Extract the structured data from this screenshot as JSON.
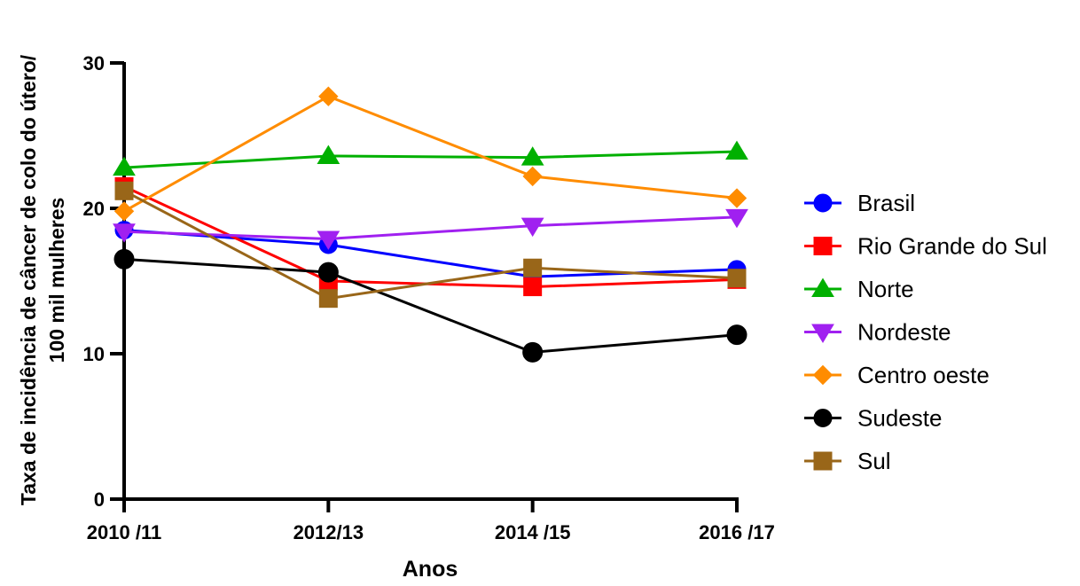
{
  "chart_data": {
    "type": "line",
    "title": "",
    "xlabel": "Anos",
    "ylabel_lines": [
      "Taxa de incidência de câncer de colo do útero/",
      "100 mil mulheres"
    ],
    "categories": [
      "2010 /11",
      "2012/13",
      "2014 /15",
      "2016 /17"
    ],
    "ylim": [
      0,
      30
    ],
    "yticks": [
      0,
      10,
      20,
      30
    ],
    "grid": false,
    "legend_position": "right",
    "series": [
      {
        "name": "Brasil",
        "color": "#0000FF",
        "marker": "circle",
        "values": [
          18.5,
          17.5,
          15.3,
          15.8
        ]
      },
      {
        "name": "Rio Grande do Sul",
        "color": "#FF0000",
        "marker": "square",
        "values": [
          21.5,
          15.0,
          14.6,
          15.1
        ]
      },
      {
        "name": "Norte",
        "color": "#00B000",
        "marker": "triangle-up",
        "values": [
          22.8,
          23.6,
          23.5,
          23.9
        ]
      },
      {
        "name": "Nordeste",
        "color": "#A020F0",
        "marker": "triangle-down",
        "values": [
          18.4,
          17.9,
          18.8,
          19.4
        ]
      },
      {
        "name": "Centro oeste",
        "color": "#FF8C00",
        "marker": "diamond",
        "values": [
          19.8,
          27.7,
          22.2,
          20.7
        ]
      },
      {
        "name": "Sudeste",
        "color": "#000000",
        "marker": "circle",
        "values": [
          16.5,
          15.6,
          10.1,
          11.3
        ]
      },
      {
        "name": "Sul",
        "color": "#996619",
        "marker": "square",
        "values": [
          21.2,
          13.8,
          15.9,
          15.2
        ]
      }
    ]
  }
}
